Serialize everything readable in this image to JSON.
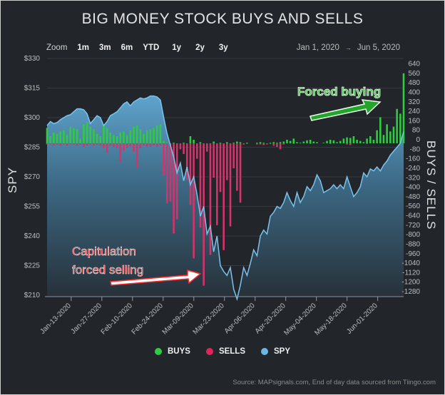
{
  "title": "BIG MONEY STOCK BUYS AND SELLS",
  "zoom": {
    "label": "Zoom",
    "options": [
      "1m",
      "3m",
      "6m",
      "YTD",
      "1y",
      "2y",
      "3y"
    ]
  },
  "range": {
    "from": "Jan 1, 2020",
    "arrow": "→",
    "to": "Jun 5, 2020"
  },
  "legend": [
    {
      "label": "BUYS",
      "color": "#2ecc40"
    },
    {
      "label": "SELLS",
      "color": "#e0245e"
    },
    {
      "label": "SPY",
      "color": "#6bb6e3"
    }
  ],
  "annotations": {
    "forced_buying": "Forced buying",
    "capitulation_1": "Capitulation",
    "capitulation_2": "forced selling"
  },
  "source": "Source: MAPsignals.com, End of day data sourced from Tiingo.com",
  "chart_data": {
    "type": "bar+area",
    "title": "BIG MONEY STOCK BUYS AND SELLS",
    "ylabel": "SPY",
    "y2label": "BUYS / SELLS",
    "ylim": [
      210,
      330
    ],
    "y_ticks": [
      "$330",
      "$315",
      "$300",
      "$285",
      "$270",
      "$255",
      "$240",
      "$225",
      "$210"
    ],
    "y2lim": [
      -1280,
      640
    ],
    "y2_ticks": [
      "640",
      "560",
      "480",
      "400",
      "320",
      "240",
      "160",
      "80",
      "0",
      "-80",
      "-160",
      "-240",
      "-320",
      "-400",
      "-480",
      "-560",
      "-640",
      "-720",
      "-800",
      "-880",
      "-960",
      "-1040",
      "-1120",
      "-1200",
      "-1280"
    ],
    "x_ticks": [
      "Jan-13-2020",
      "Jan-27-2020",
      "Feb-10-2020",
      "Feb-24-2020",
      "Mar-09-2020",
      "Mar-23-2020",
      "Apr-06-2020",
      "Apr-20-2020",
      "May-04-2020",
      "May-18-2020",
      "Jun-01-2020"
    ],
    "x_tick_day_of_year": [
      12,
      26,
      40,
      54,
      68,
      82,
      96,
      110,
      124,
      138,
      152
    ],
    "grid": true,
    "legend_position": "bottom",
    "spy": [
      296,
      298,
      297,
      297.5,
      299,
      300,
      301,
      301.5,
      303,
      304.5,
      304.5,
      304,
      302,
      297,
      299,
      301,
      300,
      296,
      298,
      301,
      302,
      303,
      305,
      307,
      308,
      306,
      308,
      309,
      310,
      309.5,
      310,
      311,
      311,
      310.5,
      309,
      300,
      292,
      286,
      280,
      272,
      277,
      268,
      275,
      266,
      270,
      261,
      250,
      255,
      241,
      245,
      232,
      240,
      225,
      222,
      220,
      224,
      213,
      208,
      215,
      224,
      220,
      226,
      233,
      230,
      240,
      243,
      241,
      250,
      252,
      255,
      254,
      257,
      262,
      258,
      255,
      262,
      257,
      260,
      265,
      263,
      266,
      271,
      268,
      262,
      263,
      264,
      266,
      264,
      266,
      264,
      270,
      265,
      260,
      262,
      265,
      272,
      270,
      274,
      273,
      275,
      273,
      276,
      278,
      281,
      283,
      285,
      287,
      293
    ],
    "buys": [
      130,
      60,
      90,
      80,
      100,
      110,
      70,
      140,
      130,
      120,
      40,
      160,
      180,
      140,
      120,
      80,
      60,
      150,
      130,
      90,
      70,
      60,
      90,
      100,
      70,
      110,
      140,
      150,
      120,
      80,
      110,
      120,
      130,
      150,
      160,
      20,
      5,
      0,
      5,
      0,
      0,
      5,
      0,
      60,
      30,
      0,
      10,
      0,
      0,
      0,
      15,
      0,
      5,
      0,
      10,
      0,
      5,
      15,
      10,
      0,
      5,
      0,
      0,
      5,
      10,
      5,
      0,
      5,
      10,
      5,
      10,
      15,
      30,
      20,
      40,
      10,
      5,
      15,
      25,
      30,
      15,
      10,
      0,
      5,
      20,
      30,
      25,
      10,
      20,
      40,
      50,
      45,
      60,
      30,
      20,
      10,
      40,
      60,
      30,
      110,
      220,
      70,
      160,
      100,
      140,
      290,
      250,
      590
    ],
    "sells": [
      -10,
      -10,
      -20,
      -10,
      -20,
      -10,
      -20,
      -10,
      -10,
      -20,
      -10,
      -30,
      -20,
      -10,
      -20,
      -10,
      -20,
      -40,
      -80,
      -20,
      -30,
      -40,
      -160,
      -60,
      -40,
      -30,
      -70,
      -210,
      -40,
      -20,
      -30,
      -30,
      -20,
      -30,
      -20,
      -270,
      -505,
      -490,
      -760,
      -640,
      -50,
      -90,
      -310,
      -520,
      -970,
      -130,
      -710,
      -1200,
      -70,
      -940,
      -290,
      -690,
      -410,
      -900,
      -310,
      -700,
      -210,
      -400,
      -500,
      -10,
      -5,
      0,
      0,
      -10,
      -10,
      -15,
      -10,
      -5,
      -20,
      -30,
      -50,
      -10,
      0,
      0,
      -5,
      0,
      0,
      0,
      0,
      -5,
      0,
      0,
      0,
      0,
      0,
      -5,
      0,
      0,
      0,
      0,
      -10,
      -15,
      0,
      0,
      0,
      0,
      -5,
      0,
      0,
      0,
      0,
      0,
      0,
      0,
      0,
      0,
      0,
      0
    ]
  }
}
